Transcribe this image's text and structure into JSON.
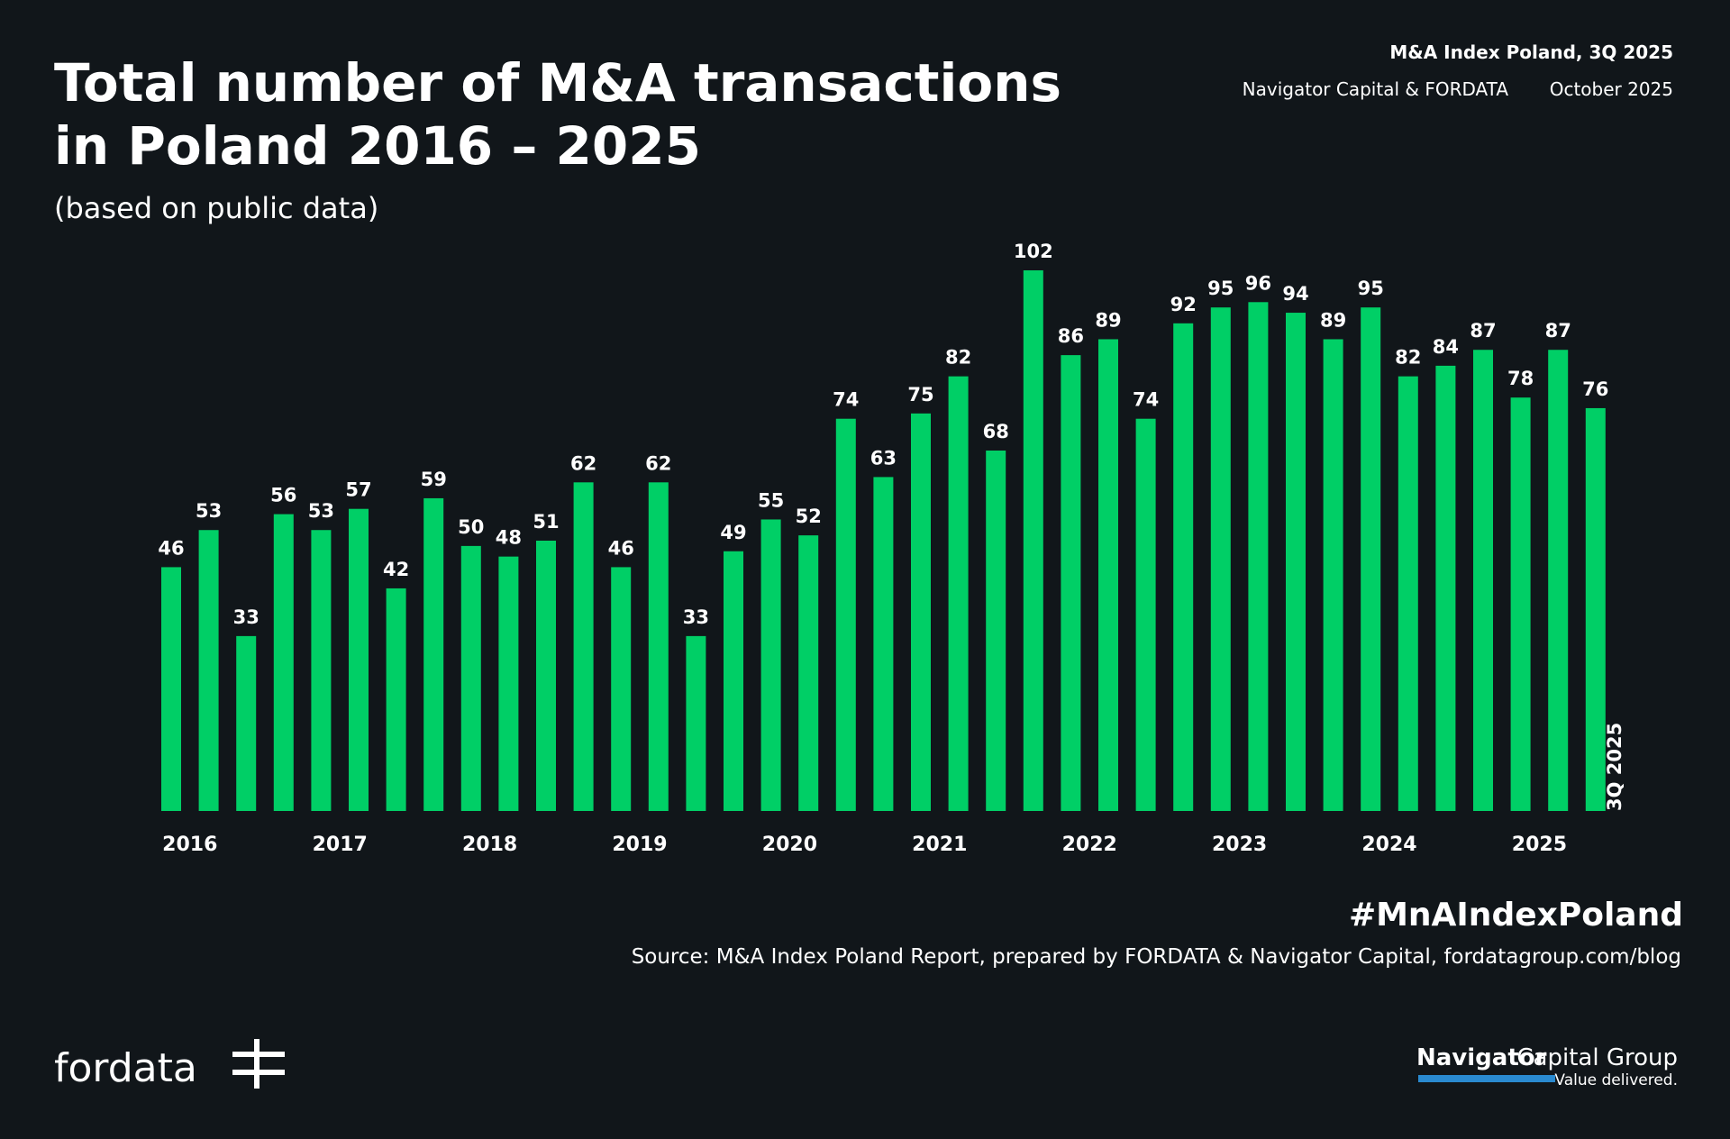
{
  "chart_data": {
    "type": "bar",
    "title": [
      "Total number of M&A transactions",
      "in Poland 2016 – 2025"
    ],
    "subtitle": "(based on public data)",
    "header": {
      "report": "M&A Index Poland, 3Q 2025",
      "authors": "Navigator Capital & FORDATA",
      "date": "October 2025"
    },
    "categories": [
      "2016",
      null,
      null,
      null,
      "2017",
      null,
      null,
      null,
      "2018",
      null,
      null,
      null,
      "2019",
      null,
      null,
      null,
      "2020",
      null,
      null,
      null,
      "2021",
      null,
      null,
      null,
      "2022",
      null,
      null,
      null,
      "2023",
      null,
      null,
      null,
      "2024",
      null,
      null,
      null,
      "2025",
      null,
      null
    ],
    "values": [
      46,
      53,
      33,
      56,
      53,
      57,
      42,
      59,
      50,
      48,
      51,
      62,
      46,
      62,
      33,
      49,
      55,
      52,
      74,
      63,
      75,
      82,
      68,
      102,
      86,
      89,
      74,
      92,
      95,
      96,
      94,
      89,
      95,
      82,
      84,
      87,
      78,
      87,
      76
    ],
    "color": "#00cf66",
    "annotation": "3Q 2025",
    "hashtag": "#MnAIndexPoland",
    "source": "Source: M&A Index Poland Report, prepared by FORDATA & Navigator Capital, fordatagroup.com/blog",
    "logos": {
      "left": "fordata",
      "right_bold": "Navigator",
      "right_light": "Capital Group",
      "tagline": "Value delivered."
    }
  }
}
